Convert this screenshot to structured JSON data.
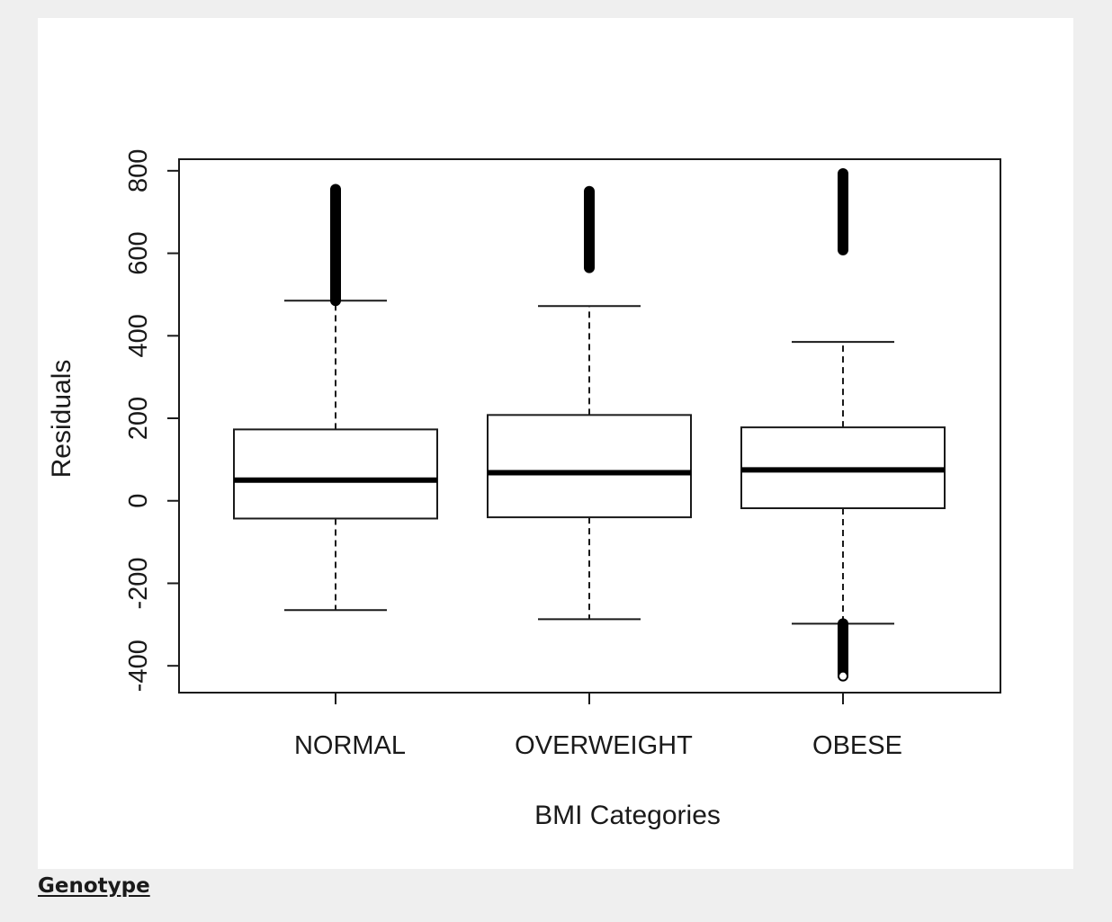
{
  "section_link": {
    "label": "Genotype"
  },
  "chart_data": {
    "type": "boxplot",
    "xlabel": "BMI Categories",
    "ylabel": "Residuals",
    "ylim": [
      -465,
      828
    ],
    "yticks": [
      -400,
      -200,
      0,
      200,
      400,
      600,
      800
    ],
    "categories": [
      "NORMAL",
      "OVERWEIGHT",
      "OBESE"
    ],
    "boxes": [
      {
        "category": "NORMAL",
        "whisker_low": -265,
        "q1": -43,
        "median": 50,
        "q3": 173,
        "whisker_high": 485,
        "outliers_high": [
          485,
          755
        ],
        "outliers_low": null
      },
      {
        "category": "OVERWEIGHT",
        "whisker_low": -287,
        "q1": -40,
        "median": 68,
        "q3": 208,
        "whisker_high": 472,
        "outliers_high": [
          565,
          750
        ],
        "outliers_low": null
      },
      {
        "category": "OBESE",
        "whisker_low": -298,
        "q1": -18,
        "median": 75,
        "q3": 178,
        "whisker_high": 385,
        "outliers_high": [
          608,
          793
        ],
        "outliers_low": [
          -425,
          -298
        ]
      }
    ],
    "grid": false,
    "legend": "none"
  }
}
